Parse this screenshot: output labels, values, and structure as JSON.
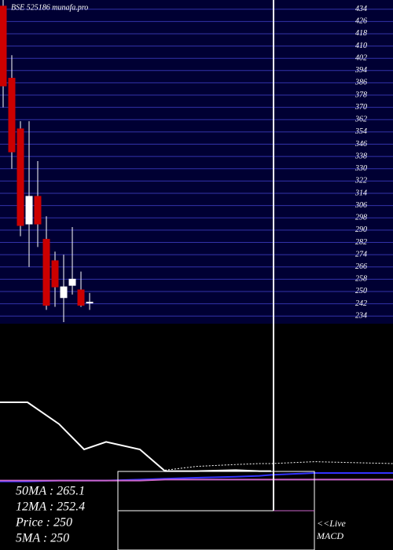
{
  "chart_data": [
    {
      "type": "candlestick",
      "title": "BSE 525186 munafa.pro",
      "open": [
        436,
        389,
        356,
        294,
        312,
        284,
        270,
        246,
        254,
        251,
        243
      ],
      "high": [
        440,
        404,
        361,
        361,
        335,
        299,
        276,
        274,
        292,
        263,
        249
      ],
      "low": [
        370,
        330,
        286,
        266,
        279,
        238,
        240,
        230,
        248,
        240,
        238
      ],
      "close": [
        384,
        341,
        293,
        312,
        294,
        241,
        253,
        253,
        258,
        241,
        243
      ],
      "up_color": "#ffffff",
      "down_color": "#cc0000",
      "ylim": [
        230,
        440
      ],
      "yticks": [
        234,
        242,
        250,
        258,
        266,
        274,
        282,
        290,
        298,
        306,
        314,
        322,
        330,
        338,
        346,
        354,
        362,
        370,
        378,
        386,
        394,
        402,
        410,
        418,
        426,
        434
      ],
      "grid": true,
      "grid_color": "#3333aa",
      "annotations": [
        "50MA : 265.1",
        "12MA : 252.4",
        "Price   : 250",
        "5MA : 250",
        "<<Live",
        "MACD"
      ]
    },
    {
      "type": "line",
      "x": [
        0,
        35,
        75,
        107,
        135,
        178,
        210,
        250,
        300,
        330,
        345,
        400,
        500
      ],
      "xlim": [
        0,
        500
      ],
      "ylim": [
        0,
        100
      ],
      "series": [
        {
          "color": "#ffffff",
          "values": [
            90,
            90,
            67,
            40,
            48,
            40,
            17,
            17,
            18,
            17,
            17,
            null,
            null
          ]
        },
        {
          "color": "#3333ff",
          "values": [
            6,
            6,
            7,
            7,
            7,
            8,
            9,
            10,
            11,
            12,
            13,
            15,
            15
          ]
        },
        {
          "color": "#cc66cc",
          "values": [
            7,
            7,
            7,
            7,
            7,
            7,
            8,
            8,
            8,
            8,
            8,
            8,
            8
          ]
        },
        {
          "color": "#ffffff",
          "dash": true,
          "values": [
            null,
            null,
            null,
            null,
            null,
            null,
            18,
            22,
            24,
            25,
            25,
            27,
            25
          ]
        }
      ]
    }
  ]
}
